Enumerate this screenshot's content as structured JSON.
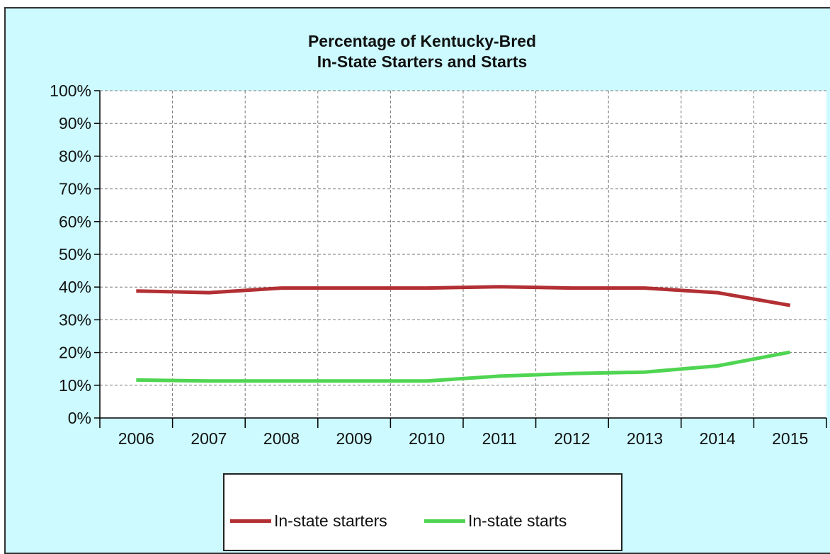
{
  "chart_data": {
    "type": "line",
    "title": [
      "Percentage of Kentucky-Bred",
      "In-State Starters and Starts"
    ],
    "xlabel": "",
    "ylabel": "",
    "categories": [
      "2006",
      "2007",
      "2008",
      "2009",
      "2010",
      "2011",
      "2012",
      "2013",
      "2014",
      "2015"
    ],
    "ylim": [
      0,
      100
    ],
    "yticks": [
      "0%",
      "10%",
      "20%",
      "30%",
      "40%",
      "50%",
      "60%",
      "70%",
      "80%",
      "90%",
      "100%"
    ],
    "grid": true,
    "legend_position": "bottom",
    "series": [
      {
        "name": "In-state starters",
        "color": "#b22f33",
        "values": [
          38.8,
          38.3,
          39.7,
          39.7,
          39.7,
          40.1,
          39.7,
          39.7,
          38.3,
          34.4
        ]
      },
      {
        "name": "In-state starts",
        "color": "#4fd552",
        "values": [
          11.6,
          11.3,
          11.3,
          11.3,
          11.3,
          12.8,
          13.6,
          14.0,
          15.9,
          20.1
        ]
      }
    ]
  },
  "colors": {
    "background": "#ccfaff",
    "plot_background": "#ffffff",
    "grid": "#777777"
  }
}
